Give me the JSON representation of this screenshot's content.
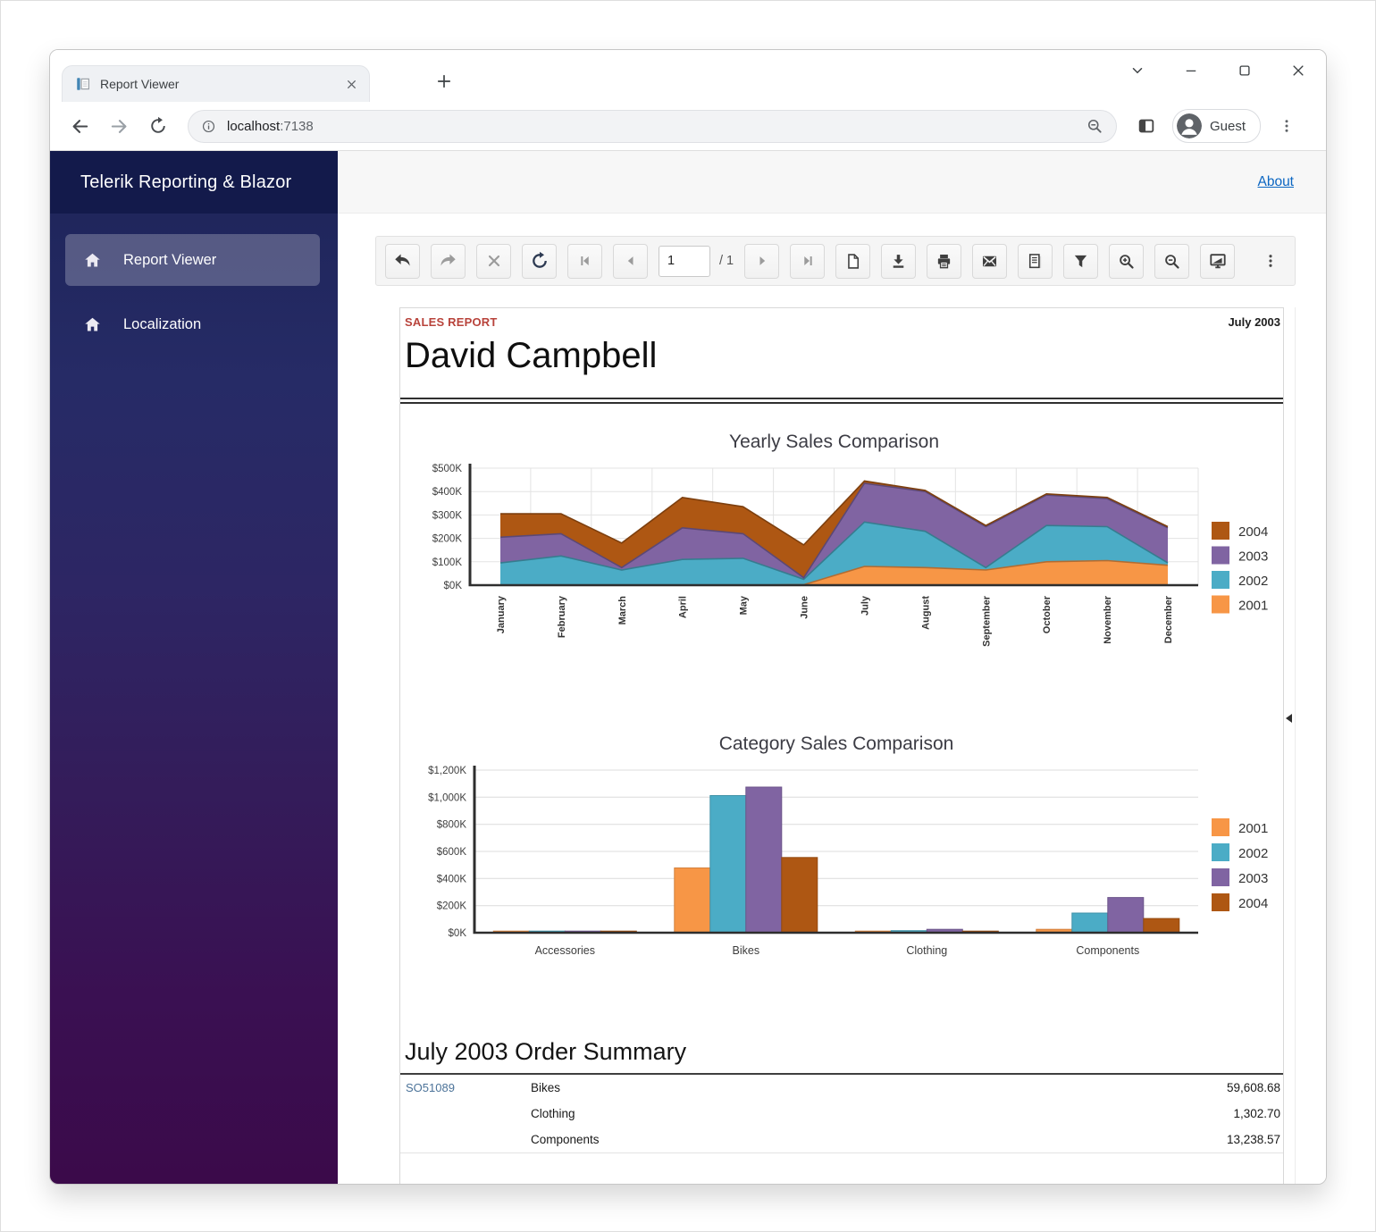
{
  "browser": {
    "tab_title": "Report Viewer",
    "url_host": "localhost",
    "url_port": ":7138",
    "profile_label": "Guest",
    "icons": [
      "report-favicon",
      "tab-close",
      "new-tab",
      "tab-search-chevron",
      "minimize",
      "maximize",
      "close",
      "back-arrow",
      "forward-arrow",
      "reload",
      "site-info",
      "zoom-indicator",
      "side-panel",
      "avatar",
      "browser-menu-kebab"
    ]
  },
  "app": {
    "brand": "Telerik Reporting & Blazor",
    "nav": [
      {
        "label": "Report Viewer",
        "active": true
      },
      {
        "label": "Localization",
        "active": false
      }
    ],
    "about_link": "About"
  },
  "viewer_toolbar": {
    "page_number": "1",
    "page_total": "/ 1",
    "icons": [
      "undo",
      "redo",
      "cancel",
      "refresh",
      "first-page",
      "previous-page",
      "next-page",
      "last-page",
      "single-page-view",
      "download",
      "print",
      "email",
      "page-setup",
      "filter",
      "zoom-in",
      "zoom-out",
      "fullscreen",
      "menu-kebab"
    ]
  },
  "report": {
    "eyebrow": "SALES REPORT",
    "period": "July 2003",
    "employee": "David Campbell",
    "summary": {
      "heading": "July 2003 Order Summary",
      "rows": [
        {
          "order": "SO51089",
          "category": "Bikes",
          "amount": "59,608.68"
        },
        {
          "order": "",
          "category": "Clothing",
          "amount": "1,302.70"
        },
        {
          "order": "",
          "category": "Components",
          "amount": "13,238.57"
        }
      ]
    }
  },
  "colors": {
    "series_2001": "#F79646",
    "series_2002": "#4BACC6",
    "series_2003": "#8064A2",
    "series_2004": "#AE5713",
    "eyebrow_red": "#B8433B",
    "link_blue": "#0B66C2",
    "sidebar_top": "#1D2458",
    "sidebar_bottom": "#3B0A4A"
  },
  "chart_data": [
    {
      "type": "area",
      "stacked": true,
      "title": "Yearly Sales Comparison",
      "unit": "thousand USD",
      "x": [
        "January",
        "February",
        "March",
        "April",
        "May",
        "June",
        "July",
        "August",
        "September",
        "October",
        "November",
        "December"
      ],
      "series": [
        {
          "name": "2001",
          "color": "#F79646",
          "values": [
            0,
            0,
            0,
            0,
            0,
            2,
            80,
            75,
            65,
            100,
            105,
            85
          ]
        },
        {
          "name": "2002",
          "color": "#4BACC6",
          "values": [
            95,
            125,
            65,
            110,
            115,
            23,
            190,
            155,
            10,
            155,
            145,
            10
          ]
        },
        {
          "name": "2003",
          "color": "#8064A2",
          "values": [
            110,
            95,
            10,
            135,
            105,
            7,
            165,
            170,
            175,
            130,
            120,
            150
          ]
        },
        {
          "name": "2004",
          "color": "#AE5713",
          "values": [
            100,
            85,
            105,
            130,
            115,
            140,
            10,
            5,
            5,
            5,
            5,
            5
          ]
        }
      ],
      "ylim": [
        0,
        500
      ],
      "yticks": [
        "$0K",
        "$100K",
        "$200K",
        "$300K",
        "$400K",
        "$500K"
      ],
      "grid": true,
      "legend_position": "right",
      "legend_order": [
        "2004",
        "2003",
        "2002",
        "2001"
      ]
    },
    {
      "type": "bar",
      "title": "Category Sales Comparison",
      "unit": "thousand USD",
      "categories": [
        "Accessories",
        "Bikes",
        "Clothing",
        "Components"
      ],
      "series": [
        {
          "name": "2001",
          "color": "#F79646",
          "values": [
            2,
            478,
            3,
            25
          ]
        },
        {
          "name": "2002",
          "color": "#4BACC6",
          "values": [
            4,
            1012,
            15,
            145
          ]
        },
        {
          "name": "2003",
          "color": "#8064A2",
          "values": [
            10,
            1075,
            25,
            260
          ]
        },
        {
          "name": "2004",
          "color": "#AE5713",
          "values": [
            5,
            555,
            8,
            105
          ]
        }
      ],
      "ylim": [
        0,
        1200
      ],
      "yticks": [
        "$0K",
        "$200K",
        "$400K",
        "$600K",
        "$800K",
        "$1,000K",
        "$1,200K"
      ],
      "grid": true,
      "legend_position": "right",
      "legend_order": [
        "2001",
        "2002",
        "2003",
        "2004"
      ]
    }
  ]
}
